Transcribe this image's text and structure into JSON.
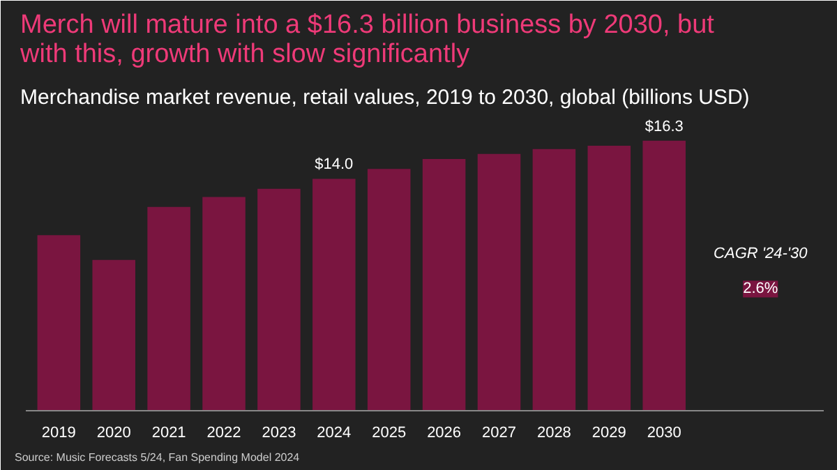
{
  "chart_data": {
    "type": "bar",
    "title": "Merch will mature into a $16.3 billion business by 2030, but\nwith this, growth with slow significantly",
    "subtitle": "Merchandise market revenue, retail values, 2019 to 2030, global (billions USD)",
    "categories": [
      "2019",
      "2020",
      "2021",
      "2022",
      "2023",
      "2024",
      "2025",
      "2026",
      "2027",
      "2028",
      "2029",
      "2030"
    ],
    "values": [
      10.6,
      9.1,
      12.3,
      12.9,
      13.4,
      14.0,
      14.6,
      15.2,
      15.5,
      15.8,
      16.0,
      16.3
    ],
    "value_labels": [
      null,
      null,
      null,
      null,
      null,
      "$14.0",
      null,
      null,
      null,
      null,
      null,
      "$16.3"
    ],
    "color": "#7a1540",
    "annotations": [
      "CAGR '24-'30",
      "2.6%",
      "Source: Music Forecasts 5/24, Fan Spending Model 2024"
    ]
  }
}
